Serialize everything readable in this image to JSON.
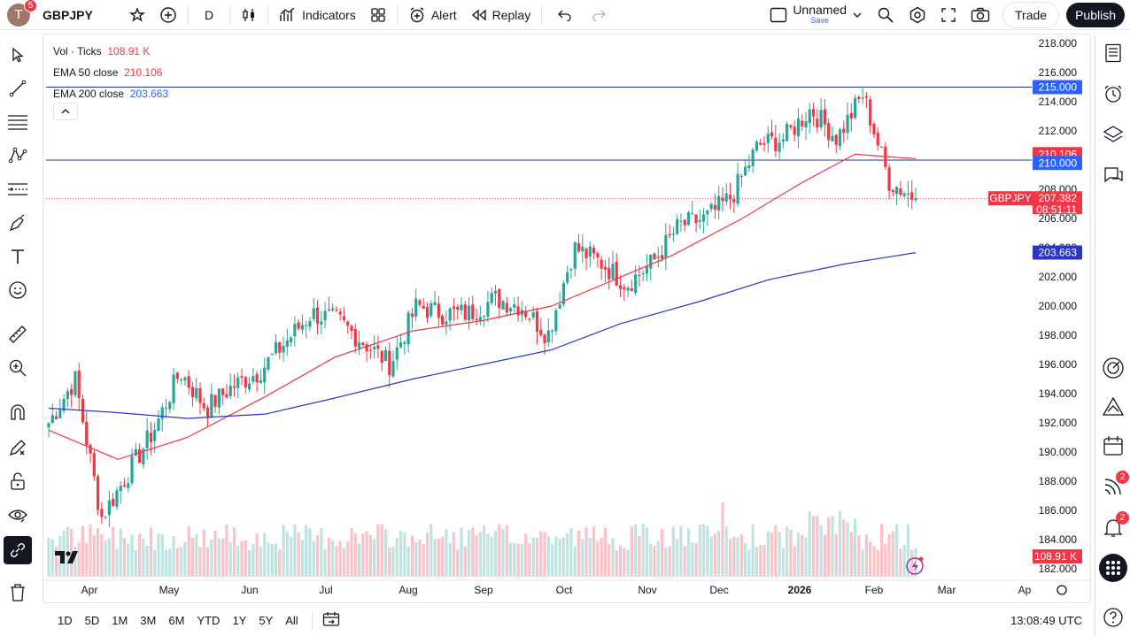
{
  "topbar": {
    "avatar_letter": "T",
    "avatar_badge": "5",
    "symbol": "GBPJPY",
    "interval": "D",
    "indicators": "Indicators",
    "alert": "Alert",
    "replay": "Replay",
    "layout_name": "Unnamed",
    "save": "Save",
    "trade": "Trade",
    "publish": "Publish"
  },
  "legend": {
    "vol_label": "Vol · Ticks",
    "vol_value": "108.91 K",
    "ema50_label": "EMA 50 close",
    "ema50_value": "210.106",
    "ema200_label": "EMA 200 close",
    "ema200_value": "203.663"
  },
  "bottombar": {
    "ranges": [
      "1D",
      "5D",
      "1M",
      "3M",
      "6M",
      "YTD",
      "1Y",
      "5Y",
      "All"
    ],
    "time": "13:08:49 UTC"
  },
  "right_badges": {
    "ideas": "2",
    "alerts": "2"
  },
  "colors": {
    "up": "#26a69a",
    "down": "#f23645",
    "ema50": "#f23645",
    "ema200": "#2b35c9",
    "hline": "#1e3a8a",
    "accent": "#2962ff"
  },
  "chart_data": {
    "type": "candlestick",
    "symbol": "GBPJPY",
    "y_axis_ticks": [
      "218.000",
      "216.000",
      "214.000",
      "212.000",
      "210.000",
      "208.000",
      "206.000",
      "204.000",
      "202.000",
      "200.000",
      "198.000",
      "196.000",
      "194.000",
      "192.000",
      "190.000",
      "188.000",
      "186.000",
      "184.000",
      "182.000"
    ],
    "x_axis_labels": [
      "Apr",
      "May",
      "Jun",
      "Jul",
      "Aug",
      "Sep",
      "Oct",
      "Nov",
      "Dec",
      "2026",
      "Feb",
      "Mar",
      "Ap"
    ],
    "ylim": [
      181.5,
      219
    ],
    "horizontal_lines": [
      215.0,
      210.0
    ],
    "last_price": "207.382",
    "countdown": "08:51:11",
    "price_labels": {
      "line_high": "215.000",
      "ema50": "210.106",
      "line_low": "210.000",
      "ema200": "203.663",
      "volume": "108.91 K",
      "symbol": "GBPJPY"
    },
    "ohlc_anchor_closes": [
      [
        "Apr",
        192.0
      ],
      [
        "Apr-mid",
        195.0
      ],
      [
        "Apr-low",
        185.5
      ],
      [
        "Apr-end",
        188.5
      ],
      [
        "May",
        191.5
      ],
      [
        "May-mid",
        195.5
      ],
      [
        "May-end",
        193.0
      ],
      [
        "Jun",
        194.5
      ],
      [
        "Jun-mid",
        195.5
      ],
      [
        "Jun-end",
        197.5
      ],
      [
        "Jul",
        199.5
      ],
      [
        "Jul-mid",
        199.0
      ],
      [
        "Jul-end",
        197.5
      ],
      [
        "Aug",
        196.0
      ],
      [
        "Aug-mid",
        200.0
      ],
      [
        "Aug-end",
        199.5
      ],
      [
        "Sep",
        199.5
      ],
      [
        "Sep-mid",
        200.5
      ],
      [
        "Sep-end",
        200.0
      ],
      [
        "Oct",
        198.0
      ],
      [
        "Oct-mid",
        204.0
      ],
      [
        "Oct-end",
        203.0
      ],
      [
        "Nov",
        201.5
      ],
      [
        "Nov-mid",
        203.0
      ],
      [
        "Nov-end",
        205.5
      ],
      [
        "Dec",
        206.0
      ],
      [
        "Dec-mid",
        207.5
      ],
      [
        "Dec-end",
        211.0
      ],
      [
        "2026",
        211.5
      ],
      [
        "Jan-mid",
        213.5
      ],
      [
        "Jan-end",
        211.5
      ],
      [
        "Feb",
        214.5
      ],
      [
        "Feb-mid",
        208.5
      ],
      [
        "last",
        207.382
      ]
    ],
    "ema50_anchors": [
      [
        0,
        191.5
      ],
      [
        0.08,
        189.5
      ],
      [
        0.16,
        191.0
      ],
      [
        0.25,
        193.8
      ],
      [
        0.33,
        196.5
      ],
      [
        0.42,
        198.3
      ],
      [
        0.5,
        199.0
      ],
      [
        0.58,
        200.0
      ],
      [
        0.64,
        201.5
      ],
      [
        0.72,
        203.5
      ],
      [
        0.8,
        206.0
      ],
      [
        0.87,
        208.5
      ],
      [
        0.93,
        210.4
      ],
      [
        1.0,
        210.1
      ]
    ],
    "ema200_anchors": [
      [
        0,
        193.0
      ],
      [
        0.08,
        192.7
      ],
      [
        0.16,
        192.3
      ],
      [
        0.25,
        192.6
      ],
      [
        0.33,
        193.7
      ],
      [
        0.42,
        195.0
      ],
      [
        0.5,
        196.0
      ],
      [
        0.58,
        197.0
      ],
      [
        0.66,
        198.8
      ],
      [
        0.75,
        200.3
      ],
      [
        0.83,
        201.8
      ],
      [
        0.92,
        202.9
      ],
      [
        1.0,
        203.66
      ]
    ]
  }
}
